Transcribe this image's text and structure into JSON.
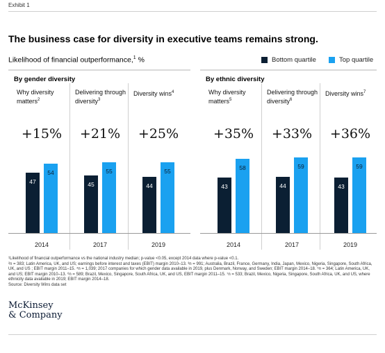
{
  "exhibit": "Exhibit 1",
  "title": "The business case for diversity in executive teams remains strong.",
  "subtitle": "Likelihood of financial outperformance,",
  "subtitle_sup": "1",
  "subtitle_unit": " %",
  "legend": {
    "bottom": "Bottom quartile",
    "top": "Top quartile"
  },
  "colors": {
    "bottom": "#0b1f33",
    "top": "#1aa1f0"
  },
  "groups": [
    {
      "title": "By gender diversity"
    },
    {
      "title": "By ethnic diversity"
    }
  ],
  "chart_data": {
    "type": "bar",
    "title": "The business case for diversity in executive teams remains strong.",
    "ylabel": "Likelihood of financial outperformance, %",
    "series_names": [
      "Bottom quartile",
      "Top quartile"
    ],
    "panels": [
      {
        "group": "By gender diversity",
        "label": "Why diversity matters",
        "label_sup": "2",
        "delta": "+15%",
        "bottom": 47,
        "top": 54,
        "year": "2014"
      },
      {
        "group": "By gender diversity",
        "label": "Delivering through diversity",
        "label_sup": "3",
        "delta": "+21%",
        "bottom": 45,
        "top": 55,
        "year": "2017"
      },
      {
        "group": "By gender diversity",
        "label": "Diversity wins",
        "label_sup": "4",
        "delta": "+25%",
        "bottom": 44,
        "top": 55,
        "year": "2019"
      },
      {
        "group": "By ethnic diversity",
        "label": "Why diversity matters",
        "label_sup": "5",
        "delta": "+35%",
        "bottom": 43,
        "top": 58,
        "year": "2014"
      },
      {
        "group": "By ethnic diversity",
        "label": "Delivering through diversity",
        "label_sup": "6",
        "delta": "+33%",
        "bottom": 44,
        "top": 59,
        "year": "2017"
      },
      {
        "group": "By ethnic diversity",
        "label": "Diversity wins",
        "label_sup": "7",
        "delta": "+36%",
        "bottom": 43,
        "top": 59,
        "year": "2019"
      }
    ]
  },
  "footnotes": [
    "¹Likelihood of financial outperformance vs the national industry median; p-value <0.05, except 2014 data where p-value <0.1.",
    "²n = 383; Latin America, UK, and US; earnings before interest and taxes (EBIT) margin 2010–13. ³n = 991; Australia, Brazil, France, Germany, India, Japan, Mexico, Nigeria, Singapore, South Africa, UK, and US ; EBIT margin 2011–15. ⁴n = 1,039; 2017 companies for which gender data available in 2019, plus Denmark, Norway, and Sweden; EBIT margin 2014–18. ⁵n = 364; Latin America, UK, and US; EBIT margin 2010–13. ⁶n = 589; Brazil, Mexico, Singapore, South Africa, UK, and US, EBIT margin 2011–15. ⁷n = 533; Brazil, Mexico, Nigeria, Singapore, South Africa, UK, and US, where ethnicity data available in 2019; EBIT margin 2014–18.",
    "Source: Diversity Wins data set"
  ],
  "logo": {
    "line1": "McKinsey",
    "line2": "& Company"
  }
}
